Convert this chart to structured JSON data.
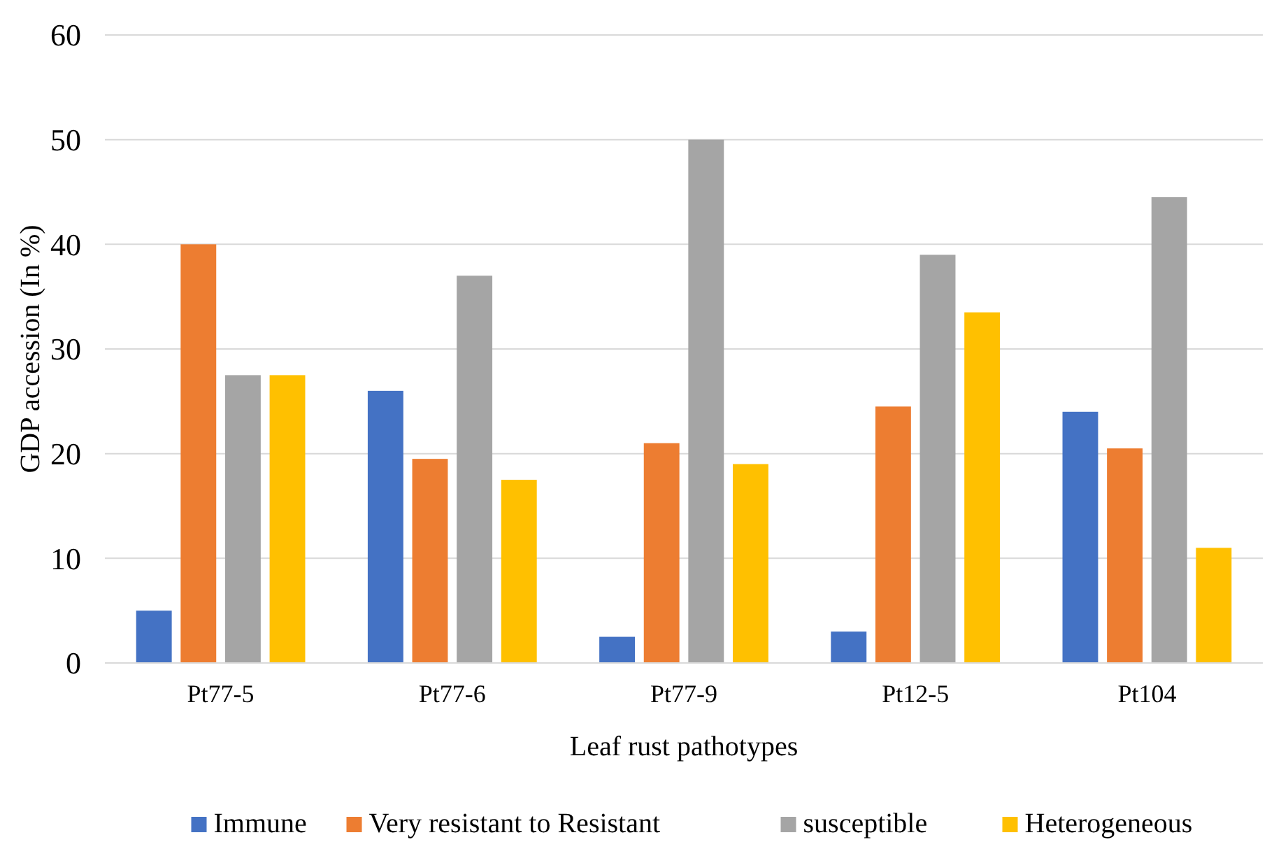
{
  "chart_data": {
    "type": "bar",
    "xlabel": "Leaf rust pathotypes",
    "ylabel": "GDP accession (In %)",
    "categories": [
      "Pt77-5",
      "Pt77-6",
      "Pt77-9",
      "Pt12-5",
      "Pt104"
    ],
    "series": [
      {
        "name": "Immune",
        "color": "#4472c4",
        "values": [
          5,
          26,
          2.5,
          3,
          24
        ]
      },
      {
        "name": "Very resistant to Resistant",
        "color": "#ed7d31",
        "values": [
          40,
          19.5,
          21,
          24.5,
          20.5
        ]
      },
      {
        "name": "susceptible",
        "color": "#a5a5a5",
        "values": [
          27.5,
          37,
          50,
          39,
          44.5
        ]
      },
      {
        "name": "Heterogeneous",
        "color": "#ffc000",
        "values": [
          27.5,
          17.5,
          19,
          33.5,
          11
        ]
      }
    ],
    "ylim": [
      0,
      60
    ],
    "yticks": [
      0,
      10,
      20,
      30,
      40,
      50,
      60
    ],
    "grid": "y",
    "legend": "bottom"
  }
}
